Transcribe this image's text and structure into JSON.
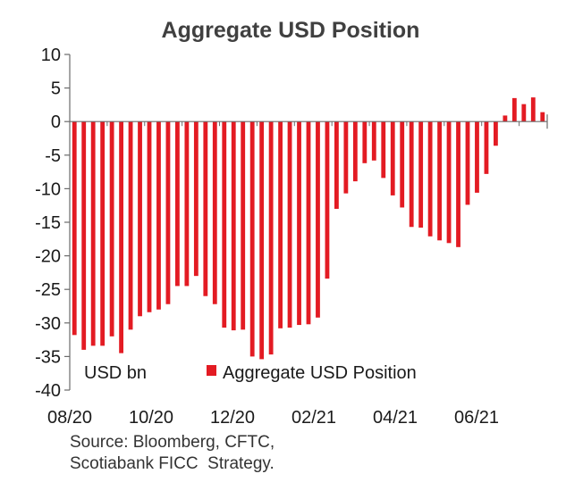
{
  "chart_data": {
    "type": "bar",
    "title": "Aggregate USD Position",
    "unit_label": "USD bn",
    "series": [
      {
        "name": "Aggregate USD Position",
        "color": "#e31b23",
        "values": [
          -31.8,
          -34.0,
          -33.4,
          -33.4,
          -32.0,
          -34.5,
          -31.0,
          -29.0,
          -28.4,
          -28.0,
          -27.2,
          -24.5,
          -24.5,
          -23.0,
          -26.0,
          -27.2,
          -30.7,
          -31.1,
          -31.0,
          -35.0,
          -35.4,
          -34.7,
          -30.8,
          -30.7,
          -30.3,
          -30.2,
          -29.2,
          -23.4,
          -13.0,
          -10.7,
          -8.9,
          -6.2,
          -5.8,
          -8.4,
          -11.0,
          -12.8,
          -15.7,
          -15.8,
          -17.1,
          -17.7,
          -18.1,
          -18.7,
          -12.4,
          -10.6,
          -7.8,
          -3.6,
          0.9,
          3.5,
          2.6,
          3.6,
          1.4
        ]
      }
    ],
    "x_tick_labels": [
      "08/20",
      "10/20",
      "12/20",
      "02/21",
      "04/21",
      "06/21"
    ],
    "y_ticks": [
      10,
      5,
      0,
      -5,
      -10,
      -15,
      -20,
      -25,
      -30,
      -35,
      -40
    ],
    "ylim": [
      -40,
      10
    ],
    "legend_position": "bottom-inside",
    "grid": false
  },
  "source": {
    "line1": "Source: Bloomberg, CFTC,",
    "line2": "Scotiabank FICC  Strategy."
  }
}
